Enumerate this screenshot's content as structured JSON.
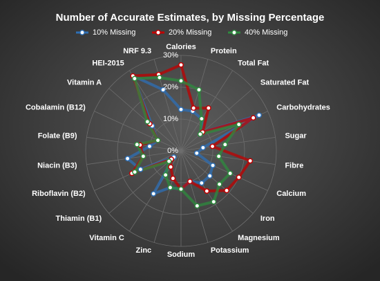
{
  "chart_data": {
    "type": "radar",
    "title": "Number of Accurate Estimates, by Missing Percentage",
    "categories": [
      "Calories",
      "Protein",
      "Total Fat",
      "Saturated Fat",
      "Carbohydrates",
      "Sugar",
      "Fibre",
      "Calcium",
      "Iron",
      "Magnesium",
      "Potassium",
      "Sodium",
      "Zinc",
      "Vitamin C",
      "Thiamin (B1)",
      "Riboflavin (B2)",
      "Niacin (B3)",
      "Folate (B9)",
      "Cobalamin (B12)",
      "Vitamin A",
      "HEI-2015",
      "NRF 9.3"
    ],
    "series": [
      {
        "name": "10% Missing",
        "color": "#2e6fb5",
        "values": [
          13,
          13,
          12,
          9,
          27,
          7,
          5,
          11,
          12,
          12,
          10,
          12,
          12,
          16,
          3,
          14,
          17,
          10,
          8,
          12,
          28,
          20
        ]
      },
      {
        "name": "20% Missing",
        "color": "#c00000",
        "values": [
          27,
          14,
          16,
          9,
          25,
          10,
          22,
          20,
          19,
          15,
          10,
          12,
          9,
          6,
          4,
          17,
          12,
          13,
          8,
          13,
          28,
          25
        ]
      },
      {
        "name": "40% Missing",
        "color": "#2e8b3e",
        "values": [
          22,
          20,
          12,
          8,
          20,
          14,
          12,
          17,
          16,
          19,
          18,
          12,
          12,
          9,
          5,
          16,
          12,
          14,
          8,
          14,
          27,
          24
        ]
      }
    ],
    "ylim": [
      0,
      30
    ],
    "yticks": [
      {
        "value": 0,
        "label": "0%"
      },
      {
        "value": 10,
        "label": "10%"
      },
      {
        "value": 20,
        "label": "20%"
      },
      {
        "value": 30,
        "label": "30%"
      }
    ],
    "grid": true,
    "legend": "top"
  }
}
